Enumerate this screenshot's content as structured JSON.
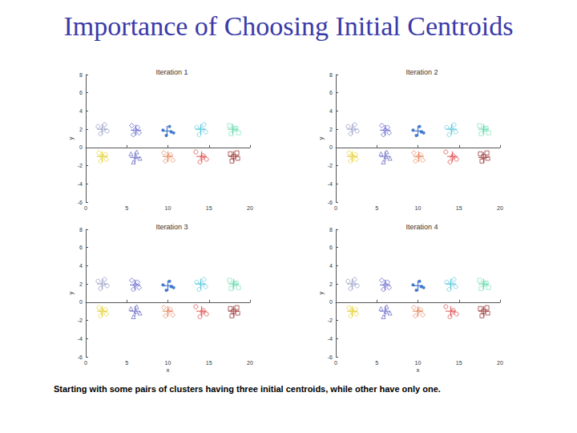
{
  "title": "Importance of Choosing Initial Centroids",
  "caption": "Starting with some pairs of clusters having three initial centroids, while other have only one.",
  "chart_data": [
    {
      "type": "scatter",
      "title": "Iteration 1",
      "y_label": "y",
      "xlim": [
        0,
        20
      ],
      "xticks": [
        0,
        5,
        10,
        15,
        20
      ],
      "ylim": [
        -6,
        8
      ],
      "yticks": [
        -6,
        -4,
        -2,
        0,
        2,
        4,
        6,
        8
      ],
      "grid": false,
      "series": [
        {
          "color": "#9aa0c8",
          "marker": "circle",
          "x": [
            1.5,
            2.3,
            2.6,
            1.8,
            2.1
          ],
          "values": [
            2.3,
            2.5,
            1.8,
            1.5,
            2.0
          ]
        },
        {
          "color": "#6a6ad0",
          "marker": "diamond",
          "x": [
            5.6,
            6.3,
            6.5,
            5.8,
            6.0
          ],
          "values": [
            2.4,
            2.2,
            1.6,
            1.4,
            1.9
          ]
        },
        {
          "color": "#1f5fc0",
          "marker": "point",
          "x": [
            9.4,
            10.2,
            10.7,
            9.8,
            10.4
          ],
          "values": [
            1.9,
            2.3,
            1.6,
            1.3,
            1.7
          ]
        },
        {
          "color": "#6fd0e0",
          "marker": "circle",
          "x": [
            13.5,
            14.4,
            14.6,
            13.8,
            14.1
          ],
          "values": [
            2.2,
            2.5,
            1.7,
            1.4,
            2.0
          ]
        },
        {
          "color": "#8fe8c8",
          "marker": "square",
          "x": [
            17.5,
            18.3,
            18.6,
            17.7,
            18.1
          ],
          "values": [
            2.4,
            2.1,
            1.6,
            1.5,
            2.0
          ]
        },
        {
          "color": "#e8d84a",
          "marker": "circle",
          "x": [
            1.6,
            2.4,
            2.5,
            1.8,
            2.0
          ],
          "values": [
            -0.6,
            -0.8,
            -1.3,
            -1.5,
            -1.0
          ]
        },
        {
          "color": "#7070c8",
          "marker": "triangle",
          "x": [
            5.5,
            6.2,
            6.6,
            5.8,
            6.1
          ],
          "values": [
            -0.7,
            -0.5,
            -1.2,
            -1.6,
            -1.0
          ]
        },
        {
          "color": "#e89070",
          "marker": "diamond",
          "x": [
            9.5,
            10.3,
            10.6,
            9.7,
            10.1
          ],
          "values": [
            -0.6,
            -0.8,
            -1.4,
            -1.5,
            -1.0
          ]
        },
        {
          "color": "#e05050",
          "marker": "circle",
          "x": [
            13.4,
            14.3,
            14.7,
            13.9,
            14.2
          ],
          "values": [
            -0.5,
            -0.9,
            -1.3,
            -1.6,
            -1.1
          ]
        },
        {
          "color": "#a04040",
          "marker": "square",
          "x": [
            17.6,
            18.4,
            18.5,
            17.8,
            18.0
          ],
          "values": [
            -0.7,
            -0.6,
            -1.2,
            -1.5,
            -1.0
          ]
        },
        {
          "marker": "cross",
          "colors": [
            "#9aa0c8",
            "#6a6ad0",
            "#1f5fc0",
            "#40c0d8",
            "#60d0a0",
            "#e0c820",
            "#7070c8",
            "#e08050",
            "#e05050",
            "#a04040"
          ],
          "x": [
            2.0,
            6.1,
            9.9,
            14.0,
            17.9,
            2.0,
            6.0,
            10.0,
            14.1,
            18.0
          ],
          "values": [
            2.0,
            1.9,
            1.8,
            2.0,
            2.0,
            -1.0,
            -1.1,
            -1.0,
            -1.0,
            -1.0
          ]
        }
      ]
    },
    {
      "type": "scatter",
      "title": "Iteration 2",
      "y_label": "y",
      "xlim": [
        0,
        20
      ],
      "xticks": [
        0,
        5,
        10,
        15,
        20
      ],
      "ylim": [
        -6,
        8
      ],
      "yticks": [
        -6,
        -4,
        -2,
        0,
        2,
        4,
        6,
        8
      ],
      "grid": false,
      "series": [
        {
          "color": "#9aa0c8",
          "marker": "circle",
          "x": [
            1.5,
            2.3,
            2.6,
            1.8,
            2.1
          ],
          "values": [
            2.3,
            2.5,
            1.8,
            1.5,
            2.0
          ]
        },
        {
          "color": "#6a6ad0",
          "marker": "diamond",
          "x": [
            5.6,
            6.3,
            6.5,
            5.8,
            6.0
          ],
          "values": [
            2.4,
            2.2,
            1.6,
            1.4,
            1.9
          ]
        },
        {
          "color": "#1f5fc0",
          "marker": "point",
          "x": [
            9.4,
            10.2,
            10.7,
            9.8,
            10.4
          ],
          "values": [
            1.9,
            2.3,
            1.6,
            1.3,
            1.7
          ]
        },
        {
          "color": "#6fd0e0",
          "marker": "circle",
          "x": [
            13.5,
            14.4,
            14.6,
            13.8,
            14.1
          ],
          "values": [
            2.2,
            2.5,
            1.7,
            1.4,
            2.0
          ]
        },
        {
          "color": "#8fe8c8",
          "marker": "square",
          "x": [
            17.5,
            18.3,
            18.6,
            17.7,
            18.1
          ],
          "values": [
            2.4,
            2.1,
            1.6,
            1.5,
            2.0
          ]
        },
        {
          "color": "#e8d84a",
          "marker": "circle",
          "x": [
            1.6,
            2.4,
            2.5,
            1.8,
            2.0
          ],
          "values": [
            -0.6,
            -0.8,
            -1.3,
            -1.5,
            -1.0
          ]
        },
        {
          "color": "#7070c8",
          "marker": "triangle",
          "x": [
            5.5,
            6.2,
            6.6,
            5.8,
            6.1
          ],
          "values": [
            -0.7,
            -0.5,
            -1.2,
            -1.6,
            -1.0
          ]
        },
        {
          "color": "#e89070",
          "marker": "diamond",
          "x": [
            9.5,
            10.3,
            10.6,
            9.7,
            10.1
          ],
          "values": [
            -0.6,
            -0.8,
            -1.4,
            -1.5,
            -1.0
          ]
        },
        {
          "color": "#e05050",
          "marker": "circle",
          "x": [
            13.4,
            14.3,
            14.7,
            13.9,
            14.2
          ],
          "values": [
            -0.5,
            -0.9,
            -1.3,
            -1.6,
            -1.1
          ]
        },
        {
          "color": "#a04040",
          "marker": "square",
          "x": [
            17.6,
            18.4,
            18.5,
            17.8,
            18.0
          ],
          "values": [
            -0.7,
            -0.6,
            -1.2,
            -1.5,
            -1.0
          ]
        },
        {
          "marker": "cross",
          "colors": [
            "#9aa0c8",
            "#6a6ad0",
            "#1f5fc0",
            "#40c0d8",
            "#60d0a0",
            "#e0c820",
            "#7070c8",
            "#e08050",
            "#e05050",
            "#a04040"
          ],
          "x": [
            2.0,
            6.0,
            10.0,
            14.1,
            18.0,
            2.0,
            6.0,
            10.1,
            14.2,
            18.0
          ],
          "values": [
            2.0,
            1.9,
            1.8,
            2.0,
            2.0,
            -1.0,
            -1.0,
            -1.0,
            -1.0,
            -1.1
          ]
        }
      ]
    },
    {
      "type": "scatter",
      "title": "Iteration 3",
      "x_label": "x",
      "y_label": "y",
      "xlim": [
        0,
        20
      ],
      "xticks": [
        0,
        5,
        10,
        15,
        20
      ],
      "ylim": [
        -6,
        8
      ],
      "yticks": [
        -6,
        -4,
        -2,
        0,
        2,
        4,
        6,
        8
      ],
      "grid": false,
      "series": [
        {
          "color": "#9aa0c8",
          "marker": "circle",
          "x": [
            1.5,
            2.3,
            2.6,
            1.8,
            2.1
          ],
          "values": [
            2.3,
            2.5,
            1.8,
            1.5,
            2.0
          ]
        },
        {
          "color": "#6a6ad0",
          "marker": "diamond",
          "x": [
            5.6,
            6.3,
            6.5,
            5.8,
            6.0
          ],
          "values": [
            2.4,
            2.2,
            1.6,
            1.4,
            1.9
          ]
        },
        {
          "color": "#1f5fc0",
          "marker": "point",
          "x": [
            9.4,
            10.2,
            10.7,
            9.8,
            10.4
          ],
          "values": [
            1.9,
            2.3,
            1.6,
            1.3,
            1.7
          ]
        },
        {
          "color": "#6fd0e0",
          "marker": "circle",
          "x": [
            13.5,
            14.4,
            14.6,
            13.8,
            14.1
          ],
          "values": [
            2.2,
            2.5,
            1.7,
            1.4,
            2.0
          ]
        },
        {
          "color": "#8fe8c8",
          "marker": "square",
          "x": [
            17.5,
            18.3,
            18.6,
            17.7,
            18.1
          ],
          "values": [
            2.4,
            2.1,
            1.6,
            1.5,
            2.0
          ]
        },
        {
          "color": "#e8d84a",
          "marker": "circle",
          "x": [
            1.6,
            2.4,
            2.5,
            1.8,
            2.0
          ],
          "values": [
            -0.6,
            -0.8,
            -1.3,
            -1.5,
            -1.0
          ]
        },
        {
          "color": "#7070c8",
          "marker": "triangle",
          "x": [
            5.5,
            6.2,
            6.6,
            5.8,
            6.1
          ],
          "values": [
            -0.7,
            -0.5,
            -1.2,
            -1.6,
            -1.0
          ]
        },
        {
          "color": "#e89070",
          "marker": "diamond",
          "x": [
            9.5,
            10.3,
            10.6,
            9.7,
            10.1
          ],
          "values": [
            -0.6,
            -0.8,
            -1.4,
            -1.5,
            -1.0
          ]
        },
        {
          "color": "#e05050",
          "marker": "circle",
          "x": [
            13.4,
            14.3,
            14.7,
            13.9,
            14.2
          ],
          "values": [
            -0.5,
            -0.9,
            -1.3,
            -1.6,
            -1.1
          ]
        },
        {
          "color": "#a04040",
          "marker": "square",
          "x": [
            17.6,
            18.4,
            18.5,
            17.8,
            18.0
          ],
          "values": [
            -0.7,
            -0.6,
            -1.2,
            -1.5,
            -1.0
          ]
        },
        {
          "marker": "cross",
          "colors": [
            "#9aa0c8",
            "#6a6ad0",
            "#1f5fc0",
            "#40c0d8",
            "#60d0a0",
            "#e0c820",
            "#7070c8",
            "#e08050",
            "#e05050",
            "#a04040"
          ],
          "x": [
            2.0,
            6.0,
            10.0,
            14.0,
            18.0,
            2.0,
            6.0,
            10.0,
            14.1,
            18.0
          ],
          "values": [
            2.0,
            1.9,
            1.8,
            2.0,
            2.0,
            -1.0,
            -1.0,
            -1.0,
            -1.0,
            -1.0
          ]
        }
      ]
    },
    {
      "type": "scatter",
      "title": "Iteration 4",
      "x_label": "x",
      "y_label": "y",
      "xlim": [
        0,
        20
      ],
      "xticks": [
        0,
        5,
        10,
        15,
        20
      ],
      "ylim": [
        -6,
        8
      ],
      "yticks": [
        -6,
        -4,
        -2,
        0,
        2,
        4,
        6,
        8
      ],
      "grid": false,
      "series": [
        {
          "color": "#9aa0c8",
          "marker": "circle",
          "x": [
            1.5,
            2.3,
            2.6,
            1.8,
            2.1
          ],
          "values": [
            2.3,
            2.5,
            1.8,
            1.5,
            2.0
          ]
        },
        {
          "color": "#6a6ad0",
          "marker": "diamond",
          "x": [
            5.6,
            6.3,
            6.5,
            5.8,
            6.0
          ],
          "values": [
            2.4,
            2.2,
            1.6,
            1.4,
            1.9
          ]
        },
        {
          "color": "#1f5fc0",
          "marker": "point",
          "x": [
            9.4,
            10.2,
            10.7,
            9.8,
            10.4
          ],
          "values": [
            1.9,
            2.3,
            1.6,
            1.3,
            1.7
          ]
        },
        {
          "color": "#6fd0e0",
          "marker": "circle",
          "x": [
            13.5,
            14.4,
            14.6,
            13.8,
            14.1
          ],
          "values": [
            2.2,
            2.5,
            1.7,
            1.4,
            2.0
          ]
        },
        {
          "color": "#8fe8c8",
          "marker": "square",
          "x": [
            17.5,
            18.3,
            18.6,
            17.7,
            18.1
          ],
          "values": [
            2.4,
            2.1,
            1.6,
            1.5,
            2.0
          ]
        },
        {
          "color": "#e8d84a",
          "marker": "circle",
          "x": [
            1.6,
            2.4,
            2.5,
            1.8,
            2.0
          ],
          "values": [
            -0.6,
            -0.8,
            -1.3,
            -1.5,
            -1.0
          ]
        },
        {
          "color": "#7070c8",
          "marker": "triangle",
          "x": [
            5.5,
            6.2,
            6.6,
            5.8,
            6.1
          ],
          "values": [
            -0.7,
            -0.5,
            -1.2,
            -1.6,
            -1.0
          ]
        },
        {
          "color": "#e89070",
          "marker": "diamond",
          "x": [
            9.5,
            10.3,
            10.6,
            9.7,
            10.1
          ],
          "values": [
            -0.6,
            -0.8,
            -1.4,
            -1.5,
            -1.0
          ]
        },
        {
          "color": "#e05050",
          "marker": "circle",
          "x": [
            13.4,
            14.3,
            14.7,
            13.9,
            14.2
          ],
          "values": [
            -0.5,
            -0.9,
            -1.3,
            -1.6,
            -1.1
          ]
        },
        {
          "color": "#a04040",
          "marker": "square",
          "x": [
            17.6,
            18.4,
            18.5,
            17.8,
            18.0
          ],
          "values": [
            -0.7,
            -0.6,
            -1.2,
            -1.5,
            -1.0
          ]
        },
        {
          "marker": "cross",
          "colors": [
            "#9aa0c8",
            "#6a6ad0",
            "#1f5fc0",
            "#40c0d8",
            "#60d0a0",
            "#e0c820",
            "#7070c8",
            "#e08050",
            "#e05050",
            "#a04040"
          ],
          "x": [
            2.0,
            6.0,
            10.0,
            14.0,
            18.0,
            2.0,
            6.0,
            10.0,
            14.0,
            18.0
          ],
          "values": [
            2.0,
            1.9,
            1.8,
            2.0,
            2.0,
            -1.0,
            -1.0,
            -1.0,
            -1.0,
            -1.0
          ]
        }
      ]
    }
  ]
}
